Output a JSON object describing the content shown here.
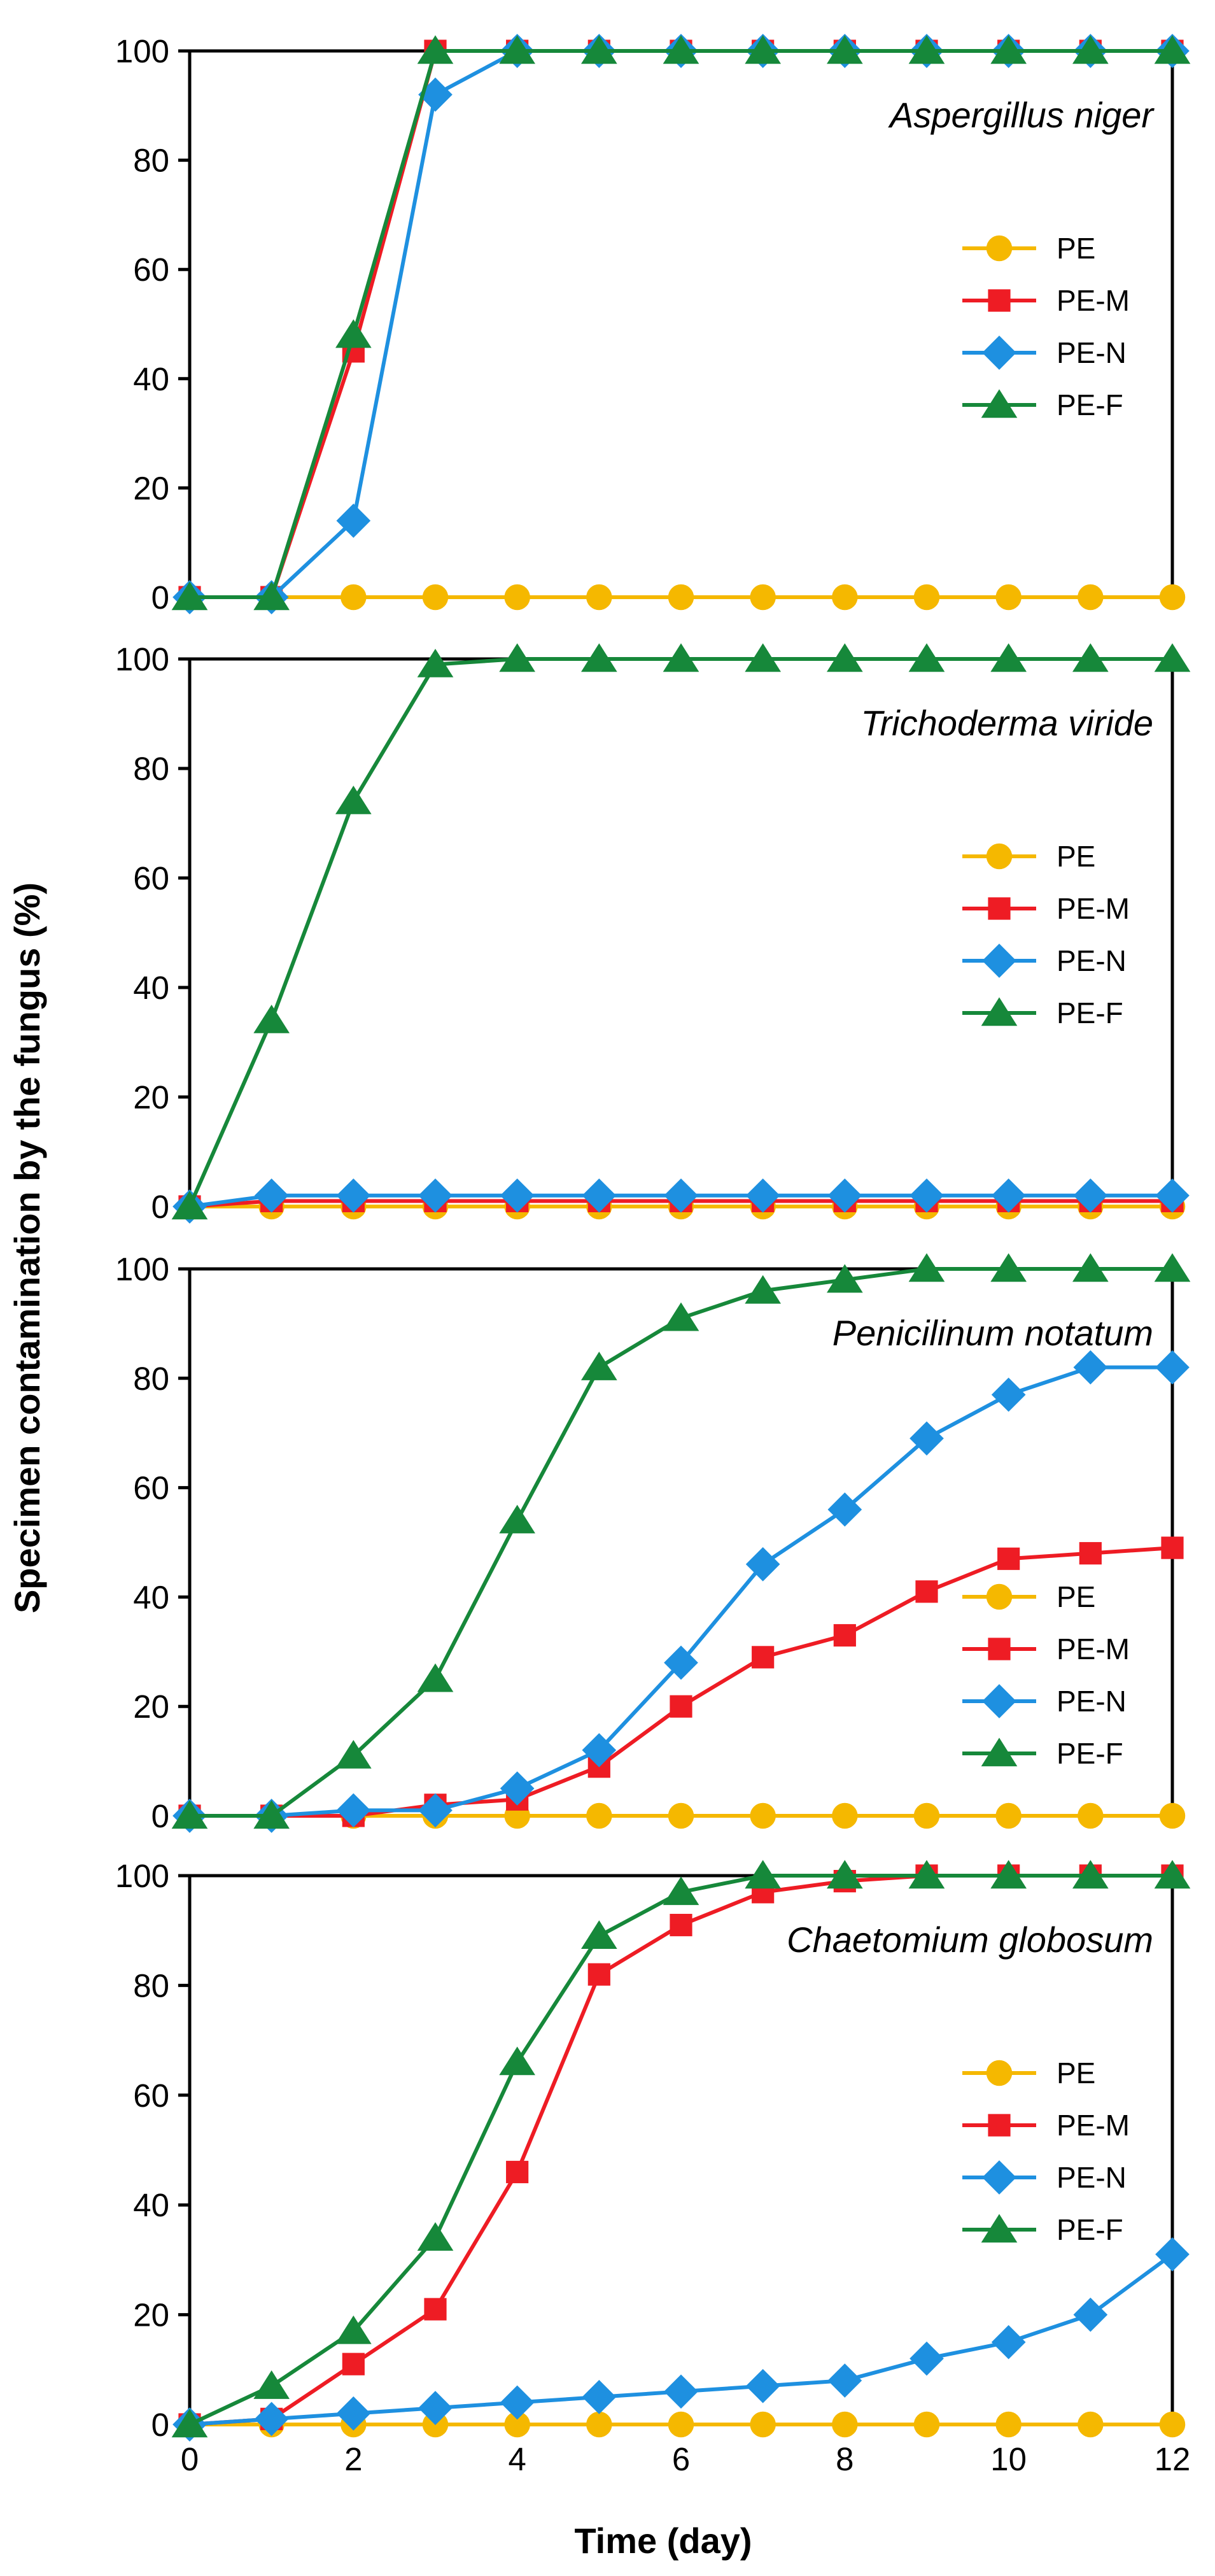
{
  "chart_data": {
    "type": "line",
    "ylabel": "Specimen contamination by the fungus (%)",
    "xlabel": "Time (day)",
    "x": [
      0,
      1,
      2,
      3,
      4,
      5,
      6,
      7,
      8,
      9,
      10,
      11,
      12
    ],
    "xticks": [
      0,
      2,
      4,
      6,
      8,
      10,
      12
    ],
    "xlim": [
      0,
      12
    ],
    "ylim": [
      0,
      100
    ],
    "yticks": [
      0,
      20,
      40,
      60,
      80,
      100
    ],
    "legend": [
      {
        "name": "PE",
        "color": "#F5B800",
        "marker": "circle"
      },
      {
        "name": "PE-M",
        "color": "#EE1C24",
        "marker": "square"
      },
      {
        "name": "PE-N",
        "color": "#1E90E0",
        "marker": "diamond"
      },
      {
        "name": "PE-F",
        "color": "#16883A",
        "marker": "triangle"
      }
    ],
    "panels": [
      {
        "title": "Aspergillus niger",
        "legend_position": "middle-right",
        "series": [
          {
            "name": "PE",
            "values": [
              0,
              0,
              0,
              0,
              0,
              0,
              0,
              0,
              0,
              0,
              0,
              0,
              0
            ]
          },
          {
            "name": "PE-M",
            "values": [
              0,
              0,
              45,
              100,
              100,
              100,
              100,
              100,
              100,
              100,
              100,
              100,
              100
            ]
          },
          {
            "name": "PE-N",
            "values": [
              0,
              0,
              14,
              92,
              100,
              100,
              100,
              100,
              100,
              100,
              100,
              100,
              100
            ]
          },
          {
            "name": "PE-F",
            "values": [
              0,
              0,
              48,
              100,
              100,
              100,
              100,
              100,
              100,
              100,
              100,
              100,
              100
            ]
          }
        ]
      },
      {
        "title": "Trichoderma viride",
        "legend_position": "middle-right",
        "series": [
          {
            "name": "PE",
            "values": [
              0,
              0,
              0,
              0,
              0,
              0,
              0,
              0,
              0,
              0,
              0,
              0,
              0
            ]
          },
          {
            "name": "PE-M",
            "values": [
              0,
              1,
              1,
              1,
              1,
              1,
              1,
              1,
              1,
              1,
              1,
              1,
              1
            ]
          },
          {
            "name": "PE-N",
            "values": [
              0,
              2,
              2,
              2,
              2,
              2,
              2,
              2,
              2,
              2,
              2,
              2,
              2
            ]
          },
          {
            "name": "PE-F",
            "values": [
              0,
              34,
              74,
              99,
              100,
              100,
              100,
              100,
              100,
              100,
              100,
              100,
              100
            ]
          }
        ]
      },
      {
        "title": "Penicilinum notatum",
        "legend_position": "bottom-right",
        "series": [
          {
            "name": "PE",
            "values": [
              0,
              0,
              0,
              0,
              0,
              0,
              0,
              0,
              0,
              0,
              0,
              0,
              0
            ]
          },
          {
            "name": "PE-M",
            "values": [
              0,
              0,
              0,
              2,
              3,
              9,
              20,
              29,
              33,
              41,
              47,
              48,
              49
            ]
          },
          {
            "name": "PE-N",
            "values": [
              0,
              0,
              1,
              1,
              5,
              12,
              28,
              46,
              56,
              69,
              77,
              82,
              82
            ]
          },
          {
            "name": "PE-F",
            "values": [
              0,
              0,
              11,
              25,
              54,
              82,
              91,
              96,
              98,
              100,
              100,
              100,
              100
            ]
          }
        ]
      },
      {
        "title": "Chaetomium globosum",
        "legend_position": "middle-right",
        "series": [
          {
            "name": "PE",
            "values": [
              0,
              0,
              0,
              0,
              0,
              0,
              0,
              0,
              0,
              0,
              0,
              0,
              0
            ]
          },
          {
            "name": "PE-M",
            "values": [
              0,
              1,
              11,
              21,
              46,
              82,
              91,
              97,
              99,
              100,
              100,
              100,
              100
            ]
          },
          {
            "name": "PE-N",
            "values": [
              0,
              1,
              2,
              3,
              4,
              5,
              6,
              7,
              8,
              12,
              15,
              20,
              31
            ]
          },
          {
            "name": "PE-F",
            "values": [
              0,
              7,
              17,
              34,
              66,
              89,
              97,
              100,
              100,
              100,
              100,
              100,
              100
            ]
          }
        ]
      }
    ]
  }
}
